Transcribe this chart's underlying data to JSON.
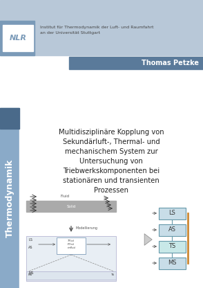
{
  "bg_color": "#ffffff",
  "header_bg": "#b8c8d8",
  "header_dark_bg": "#7a9ab8",
  "author_bar_bg": "#5a7a9a",
  "left_bar_bg": "#8aaac8",
  "left_bar_dark": "#4a6a8a",
  "title_text": "Multidisziplinäre Kopplung von\nSekundärluft-, Thermal- und\nmechanischem System zur\nUntersuchung von\nTriebwerkskomponenten bei\nstationären und transienten\nProzessen",
  "author_text": "Thomas Petzke",
  "institute_line1": "Institut für Thermodynamik der Luft- und Raumfahrt",
  "institute_line2": "an der Universität Stuttgart",
  "vertical_text": "Thermodynamik",
  "box_labels": [
    "LS",
    "AS",
    "TS",
    "MS"
  ],
  "diagram_label_fluid": "Fluid",
  "diagram_label_solid": "Solid",
  "diagram_label_modellierung": "Modellierung"
}
